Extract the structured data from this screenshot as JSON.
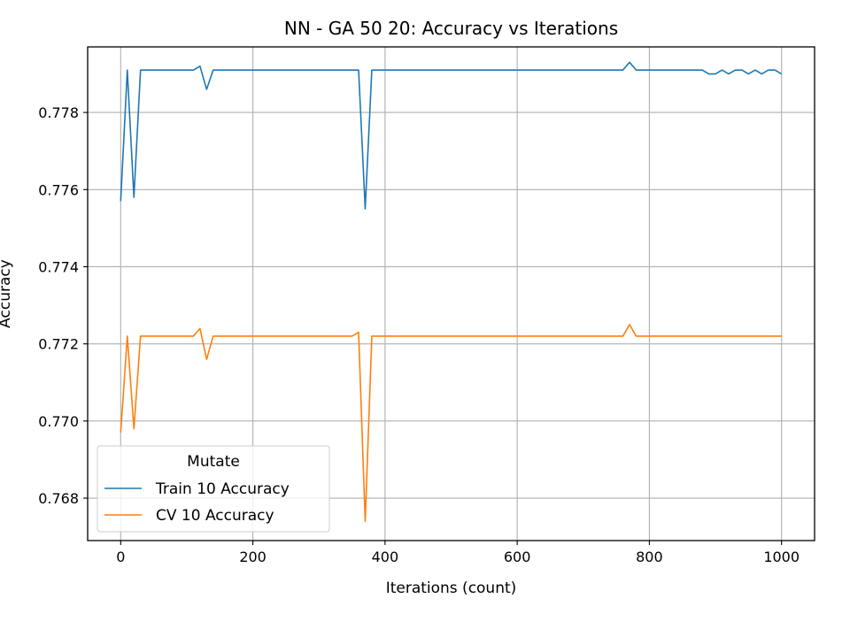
{
  "chart_data": {
    "type": "line",
    "title": "NN - GA 50 20: Accuracy vs Iterations",
    "xlabel": "Iterations (count)",
    "ylabel": "Accuracy",
    "xlim": [
      -50,
      1050
    ],
    "ylim": [
      0.7669,
      0.7797
    ],
    "x_ticks": [
      0,
      200,
      400,
      600,
      800,
      1000
    ],
    "x_tick_labels": [
      "0",
      "200",
      "400",
      "600",
      "800",
      "1000"
    ],
    "y_ticks": [
      0.768,
      0.77,
      0.772,
      0.774,
      0.776,
      0.778
    ],
    "y_tick_labels": [
      "0.768",
      "0.770",
      "0.772",
      "0.774",
      "0.776",
      "0.778"
    ],
    "grid": true,
    "legend": {
      "title": "Mutate",
      "placement": "lower-left"
    },
    "colors": {
      "Train 10 Accuracy": "#1f77b4",
      "CV 10 Accuracy": "#ff7f0e"
    },
    "series": [
      {
        "name": "Train 10 Accuracy",
        "x": [
          0,
          10,
          20,
          30,
          40,
          50,
          60,
          70,
          80,
          90,
          100,
          110,
          120,
          130,
          140,
          150,
          200,
          250,
          300,
          350,
          360,
          370,
          380,
          390,
          400,
          500,
          600,
          700,
          760,
          770,
          780,
          790,
          800,
          850,
          880,
          890,
          900,
          910,
          920,
          930,
          940,
          950,
          960,
          970,
          980,
          990,
          1000
        ],
        "y": [
          0.7757,
          0.7791,
          0.7758,
          0.7791,
          0.7791,
          0.7791,
          0.7791,
          0.7791,
          0.7791,
          0.7791,
          0.7791,
          0.7791,
          0.7792,
          0.7786,
          0.7791,
          0.7791,
          0.7791,
          0.7791,
          0.7791,
          0.7791,
          0.7791,
          0.7755,
          0.7791,
          0.7791,
          0.7791,
          0.7791,
          0.7791,
          0.7791,
          0.7791,
          0.7793,
          0.7791,
          0.7791,
          0.7791,
          0.7791,
          0.7791,
          0.779,
          0.779,
          0.7791,
          0.779,
          0.7791,
          0.7791,
          0.779,
          0.7791,
          0.779,
          0.7791,
          0.7791,
          0.779
        ]
      },
      {
        "name": "CV 10 Accuracy",
        "x": [
          0,
          10,
          20,
          30,
          40,
          50,
          60,
          70,
          80,
          90,
          100,
          110,
          120,
          130,
          140,
          150,
          200,
          250,
          300,
          350,
          360,
          370,
          380,
          390,
          400,
          500,
          600,
          700,
          760,
          770,
          780,
          790,
          800,
          850,
          900,
          950,
          1000
        ],
        "y": [
          0.7697,
          0.7722,
          0.7698,
          0.7722,
          0.7722,
          0.7722,
          0.7722,
          0.7722,
          0.7722,
          0.7722,
          0.7722,
          0.7722,
          0.7724,
          0.7716,
          0.7722,
          0.7722,
          0.7722,
          0.7722,
          0.7722,
          0.7722,
          0.7723,
          0.7674,
          0.7722,
          0.7722,
          0.7722,
          0.7722,
          0.7722,
          0.7722,
          0.7722,
          0.7725,
          0.7722,
          0.7722,
          0.7722,
          0.7722,
          0.7722,
          0.7722,
          0.7722
        ]
      }
    ]
  }
}
